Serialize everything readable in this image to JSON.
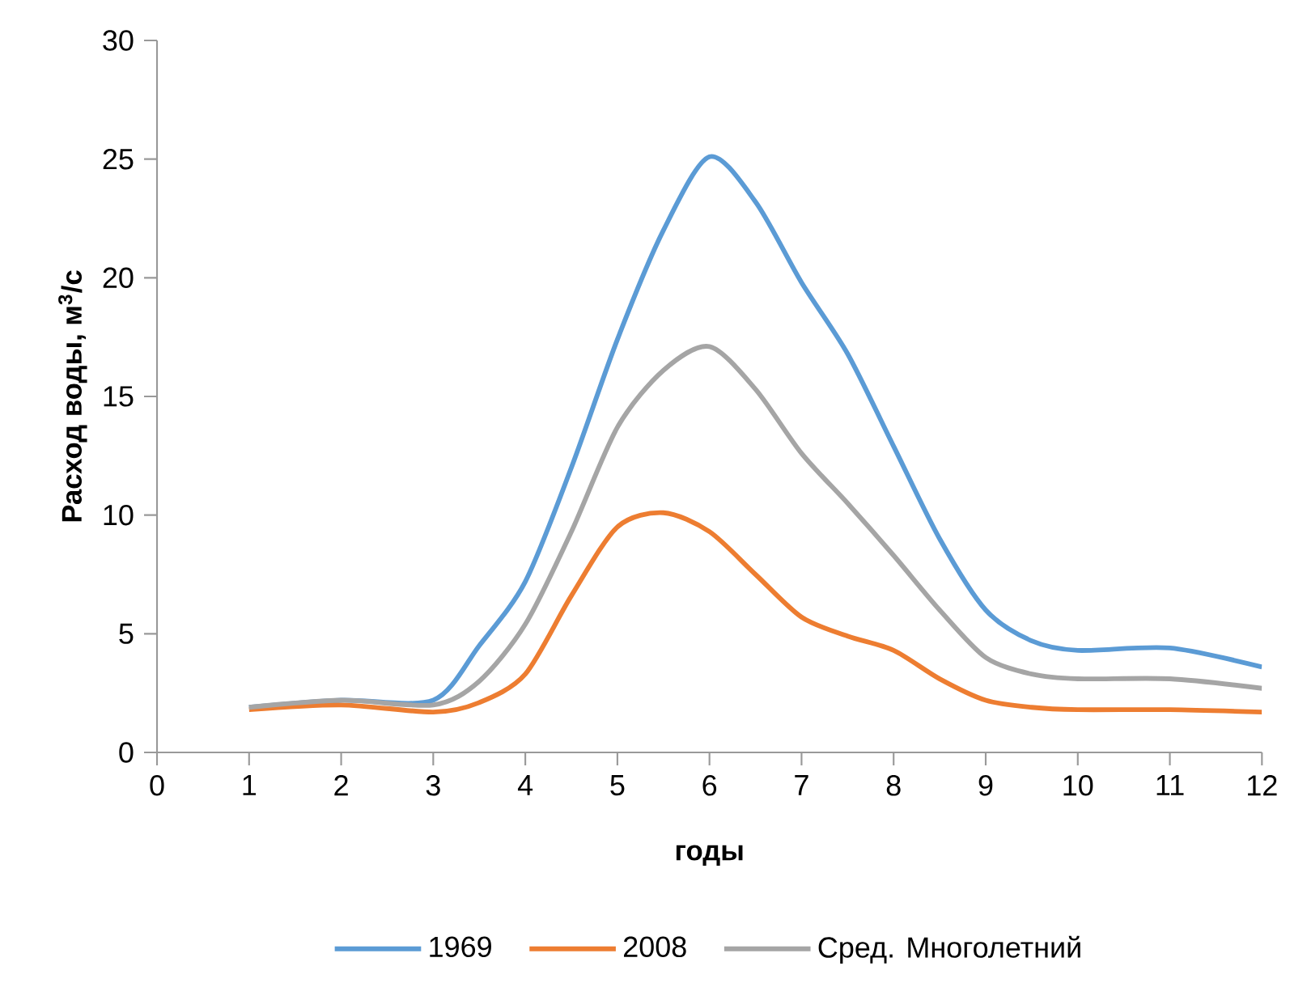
{
  "chart_data": {
    "type": "line",
    "xlabel": "годы",
    "ylabel": "Расход воды, м$^{3}$/с",
    "xlim": [
      0,
      12
    ],
    "xticks": [
      0,
      1,
      2,
      3,
      4,
      5,
      6,
      7,
      8,
      9,
      10,
      11,
      12
    ],
    "ylim": [
      0,
      30
    ],
    "yticks": [
      0,
      5,
      10,
      15,
      20,
      25,
      30
    ],
    "x": [
      1,
      2,
      3,
      3.5,
      4,
      4.5,
      5,
      5.5,
      6,
      6.5,
      7,
      7.5,
      8,
      8.5,
      9,
      9.5,
      10,
      11,
      12
    ],
    "series": [
      {
        "name": "1969",
        "color": "#5b9bd5",
        "values": [
          1.9,
          2.2,
          2.2,
          4.5,
          7.2,
          12.0,
          17.4,
          22.0,
          25.1,
          23.2,
          19.8,
          16.8,
          12.9,
          9.0,
          6.0,
          4.7,
          4.3,
          4.4,
          3.6
        ]
      },
      {
        "name": "2008",
        "color": "#ed7d31",
        "values": [
          1.8,
          2.0,
          1.7,
          2.1,
          3.3,
          6.6,
          9.5,
          10.1,
          9.3,
          7.5,
          5.7,
          4.9,
          4.3,
          3.1,
          2.2,
          1.9,
          1.8,
          1.8,
          1.7
        ]
      },
      {
        "name": "Сред. Многолетний",
        "color": "#a5a5a5",
        "values": [
          1.9,
          2.2,
          2.0,
          3.0,
          5.4,
          9.3,
          13.7,
          16.1,
          17.1,
          15.3,
          12.6,
          10.5,
          8.3,
          6.0,
          4.0,
          3.3,
          3.1,
          3.1,
          2.7
        ]
      }
    ],
    "legend": "bottom",
    "marker": "none",
    "line_style": "solid",
    "grid": false
  }
}
